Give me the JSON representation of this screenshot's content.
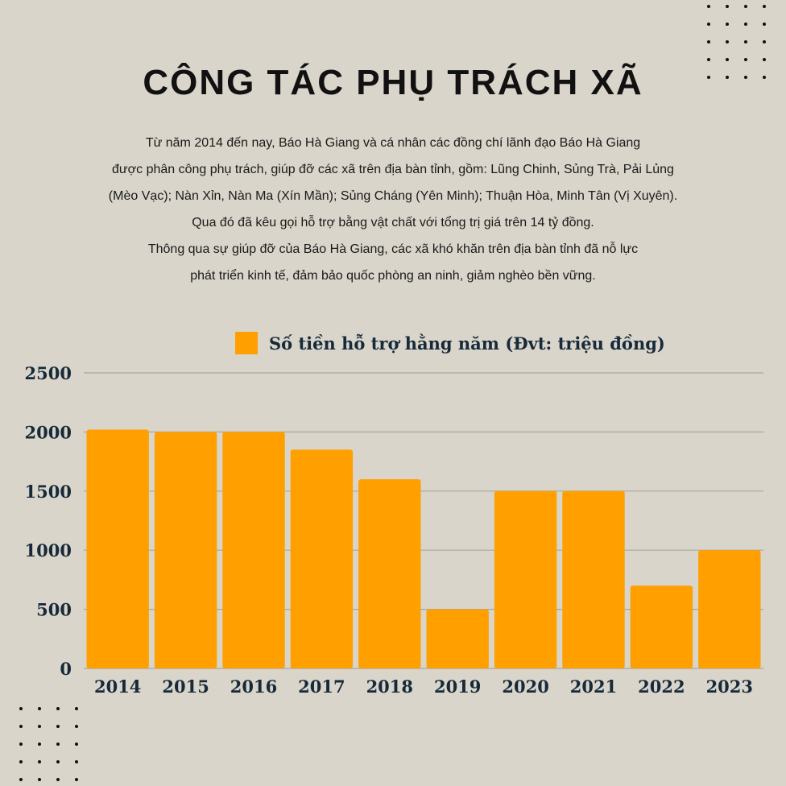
{
  "header": {
    "title": "CÔNG TÁC PHỤ TRÁCH XÃ"
  },
  "paragraph": {
    "lines": [
      "Từ năm 2014 đến nay, Báo Hà Giang và cá nhân các đồng chí lãnh đạo Báo Hà Giang",
      "được phân công phụ trách, giúp đỡ các xã trên địa bàn tỉnh, gồm: Lũng Chinh, Sủng Trà, Pải Lủng",
      "(Mèo Vạc); Nàn Xỉn, Nàn Ma (Xín Mần); Sủng Cháng (Yên Minh); Thuận Hòa, Minh Tân (Vị Xuyên).",
      "Qua đó đã kêu gọi hỗ trợ bằng vật chất với tổng trị giá trên 14 tỷ đồng.",
      "Thông qua sự giúp đỡ của Báo Hà Giang, các xã khó khăn trên địa bàn tỉnh đã nỗ lực",
      "phát triển kinh tế, đảm bảo quốc phòng an ninh, giảm nghèo bền vững."
    ]
  },
  "colors": {
    "background": "#d9d5ca",
    "bar": "#ff9f00",
    "axis_text": "#172a3a",
    "gridline": "#a9a69c"
  },
  "chart_data": {
    "type": "bar",
    "title": "",
    "xlabel": "",
    "ylabel": "",
    "categories": [
      "2014",
      "2015",
      "2016",
      "2017",
      "2018",
      "2019",
      "2020",
      "2021",
      "2022",
      "2023"
    ],
    "series": [
      {
        "name": "Số tiền hỗ trợ hằng năm (Đvt: triệu đồng)",
        "values": [
          2020,
          2000,
          2000,
          1850,
          1600,
          500,
          1500,
          1500,
          700,
          1000
        ]
      }
    ],
    "ylim": [
      0,
      2500
    ],
    "yticks": [
      "0",
      "500",
      "1000",
      "1500",
      "2000",
      "2500"
    ],
    "grid": true,
    "legend": "top-center"
  }
}
